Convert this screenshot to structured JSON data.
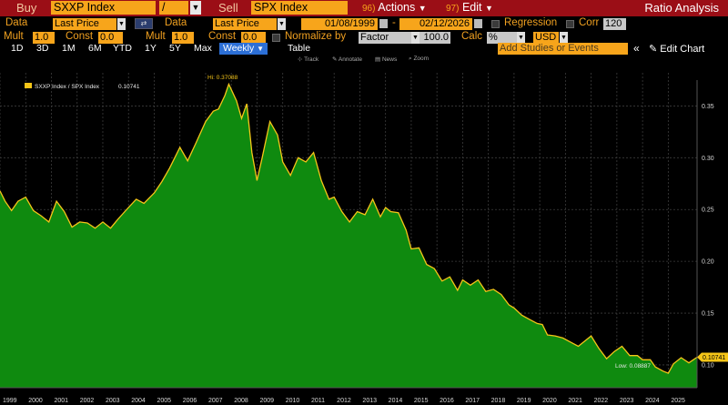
{
  "header": {
    "buy_label": "Buy",
    "buy_ticker": "SXXP Index",
    "operator": "/",
    "sell_label": "Sell",
    "sell_ticker": "SPX Index",
    "actions_num": "96)",
    "actions_label": "Actions",
    "edit_num": "97)",
    "edit_label": "Edit",
    "title": "Ratio Analysis"
  },
  "params": {
    "data_label_1": "Data",
    "data_value_1": "Last Price",
    "data_label_2": "Data",
    "data_value_2": "Last Price",
    "start_date": "01/08/1999",
    "date_sep": "-",
    "end_date": "02/12/2026",
    "regression_label": "Regression",
    "corr_label": "Corr",
    "corr_value": "120",
    "mult_label_1": "Mult",
    "mult_value_1": "1.0",
    "const_label_1": "Const",
    "const_value_1": "0.0",
    "mult_label_2": "Mult",
    "mult_value_2": "1.0",
    "const_label_2": "Const",
    "const_value_2": "0.0",
    "normalize_label": "Normalize by",
    "normalize_value": "Factor",
    "factor_value": "100.0",
    "calc_label": "Calc",
    "calc_value": "%",
    "currency": "USD"
  },
  "periods": [
    "1D",
    "3D",
    "1M",
    "6M",
    "YTD",
    "1Y",
    "5Y",
    "Max"
  ],
  "frequency": "Weekly",
  "table_label": "Table",
  "add_studies": "Add Studies or Events",
  "edit_chart": "Edit Chart",
  "tools": [
    "Track",
    "Annotate",
    "News",
    "Zoom"
  ],
  "colors": {
    "fill": "#0f8a0f",
    "line": "#f5c518",
    "accent": "#f7a51b",
    "header_bg": "#9b0e16"
  },
  "chart_data": {
    "type": "area",
    "legend": "SXXP Index / SPX Index",
    "legend_value": "0.10741",
    "last_value_label": "0.10741",
    "hi_label": "Hi: 0.37088",
    "low_label": "Low: 0.08887",
    "x_labels": [
      "1999",
      "2000",
      "2001",
      "2002",
      "2003",
      "2004",
      "2005",
      "2006",
      "2007",
      "2008",
      "2009",
      "2010",
      "2011",
      "2012",
      "2013",
      "2014",
      "2015",
      "2016",
      "2017",
      "2018",
      "2019",
      "2020",
      "2021",
      "2022",
      "2023",
      "2024",
      "2025"
    ],
    "y_ticks": [
      "0.35",
      "0.30",
      "0.25",
      "0.20",
      "0.15",
      "0.10"
    ],
    "ylim": [
      0.078,
      0.382
    ],
    "xlim": [
      1999.0,
      2026.12
    ],
    "x": [
      1999.0,
      1999.2,
      1999.45,
      1999.7,
      2000.0,
      2000.3,
      2000.6,
      2000.9,
      2001.2,
      2001.5,
      2001.8,
      2002.1,
      2002.4,
      2002.7,
      2003.0,
      2003.3,
      2003.6,
      2004.0,
      2004.3,
      2004.6,
      2005.0,
      2005.3,
      2005.6,
      2006.0,
      2006.3,
      2006.6,
      2007.0,
      2007.3,
      2007.5,
      2007.75,
      2007.9,
      2008.2,
      2008.4,
      2008.6,
      2008.8,
      2009.0,
      2009.2,
      2009.5,
      2009.8,
      2010.0,
      2010.3,
      2010.6,
      2010.9,
      2011.2,
      2011.5,
      2011.8,
      2012.0,
      2012.3,
      2012.6,
      2012.9,
      2013.2,
      2013.5,
      2013.8,
      2014.0,
      2014.2,
      2014.5,
      2014.8,
      2015.0,
      2015.3,
      2015.6,
      2015.9,
      2016.2,
      2016.5,
      2016.8,
      2017.0,
      2017.3,
      2017.6,
      2017.9,
      2018.2,
      2018.5,
      2018.8,
      2019.0,
      2019.3,
      2019.6,
      2019.9,
      2020.1,
      2020.3,
      2020.6,
      2020.9,
      2021.2,
      2021.5,
      2021.8,
      2022.0,
      2022.3,
      2022.6,
      2022.9,
      2023.2,
      2023.5,
      2023.8,
      2024.0,
      2024.3,
      2024.5,
      2024.8,
      2025.0,
      2025.2,
      2025.5,
      2025.8,
      2026.12
    ],
    "values": [
      0.268,
      0.258,
      0.249,
      0.258,
      0.262,
      0.249,
      0.244,
      0.238,
      0.258,
      0.248,
      0.233,
      0.238,
      0.237,
      0.232,
      0.238,
      0.232,
      0.241,
      0.252,
      0.26,
      0.256,
      0.266,
      0.277,
      0.29,
      0.31,
      0.297,
      0.313,
      0.335,
      0.345,
      0.347,
      0.36,
      0.371,
      0.355,
      0.338,
      0.352,
      0.305,
      0.278,
      0.3,
      0.335,
      0.322,
      0.296,
      0.283,
      0.3,
      0.296,
      0.305,
      0.278,
      0.26,
      0.262,
      0.248,
      0.238,
      0.248,
      0.245,
      0.26,
      0.243,
      0.252,
      0.248,
      0.247,
      0.23,
      0.212,
      0.213,
      0.197,
      0.193,
      0.181,
      0.185,
      0.172,
      0.182,
      0.177,
      0.182,
      0.171,
      0.173,
      0.168,
      0.158,
      0.155,
      0.148,
      0.144,
      0.14,
      0.139,
      0.129,
      0.128,
      0.126,
      0.122,
      0.118,
      0.124,
      0.128,
      0.116,
      0.106,
      0.113,
      0.118,
      0.109,
      0.109,
      0.105,
      0.105,
      0.098,
      0.094,
      0.092,
      0.101,
      0.107,
      0.102,
      0.1074
    ]
  }
}
